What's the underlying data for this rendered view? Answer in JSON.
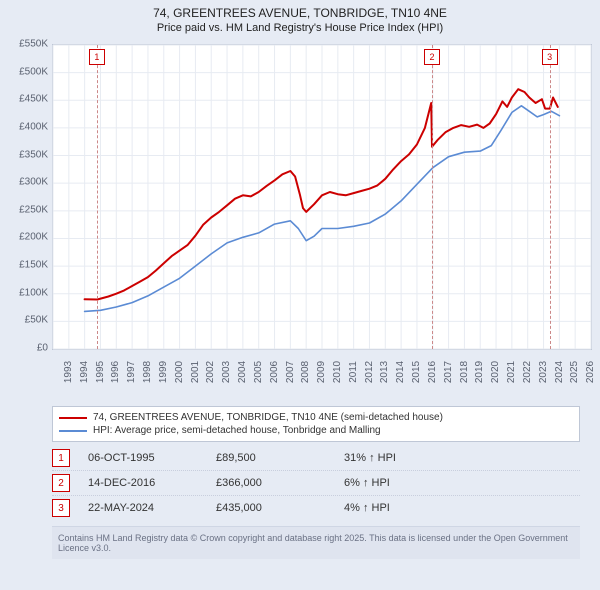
{
  "title": "74, GREENTREES AVENUE, TONBRIDGE, TN10 4NE",
  "subtitle": "Price paid vs. HM Land Registry's House Price Index (HPI)",
  "chart": {
    "type": "line",
    "background_color": "#ffffff",
    "grid_color": "#e7ebf2",
    "axis_color": "#bfc7d6",
    "fontsize_axis": 10,
    "x": {
      "min": 1993,
      "max": 2027,
      "step": 1
    },
    "y": {
      "min": 0,
      "max": 550,
      "step": 50,
      "unit_prefix": "£",
      "unit_suffix": "K"
    },
    "series": [
      {
        "name": "74, GREENTREES AVENUE, TONBRIDGE, TN10 4NE (semi-detached house)",
        "color": "#cc0000",
        "width": 2,
        "points": [
          [
            1995.0,
            90
          ],
          [
            1995.8,
            89.5
          ],
          [
            1996.5,
            95
          ],
          [
            1997.0,
            100
          ],
          [
            1997.5,
            106
          ],
          [
            1998.0,
            114
          ],
          [
            1998.5,
            122
          ],
          [
            1999.0,
            130
          ],
          [
            1999.5,
            142
          ],
          [
            2000.0,
            155
          ],
          [
            2000.5,
            168
          ],
          [
            2001.0,
            178
          ],
          [
            2001.5,
            188
          ],
          [
            2002.0,
            205
          ],
          [
            2002.5,
            225
          ],
          [
            2003.0,
            238
          ],
          [
            2003.5,
            248
          ],
          [
            2004.0,
            260
          ],
          [
            2004.5,
            272
          ],
          [
            2005.0,
            278
          ],
          [
            2005.5,
            276
          ],
          [
            2006.0,
            284
          ],
          [
            2006.5,
            295
          ],
          [
            2007.0,
            305
          ],
          [
            2007.5,
            316
          ],
          [
            2008.0,
            322
          ],
          [
            2008.3,
            312
          ],
          [
            2008.6,
            280
          ],
          [
            2008.8,
            255
          ],
          [
            2009.0,
            248
          ],
          [
            2009.5,
            262
          ],
          [
            2010.0,
            278
          ],
          [
            2010.5,
            284
          ],
          [
            2011.0,
            280
          ],
          [
            2011.5,
            278
          ],
          [
            2012.0,
            282
          ],
          [
            2012.5,
            286
          ],
          [
            2013.0,
            290
          ],
          [
            2013.5,
            296
          ],
          [
            2014.0,
            308
          ],
          [
            2014.5,
            325
          ],
          [
            2015.0,
            340
          ],
          [
            2015.5,
            352
          ],
          [
            2016.0,
            370
          ],
          [
            2016.5,
            400
          ],
          [
            2016.9,
            445
          ],
          [
            2016.95,
            366
          ],
          [
            2017.3,
            378
          ],
          [
            2017.8,
            392
          ],
          [
            2018.3,
            400
          ],
          [
            2018.8,
            405
          ],
          [
            2019.3,
            402
          ],
          [
            2019.8,
            406
          ],
          [
            2020.2,
            400
          ],
          [
            2020.6,
            408
          ],
          [
            2021.0,
            425
          ],
          [
            2021.4,
            448
          ],
          [
            2021.7,
            438
          ],
          [
            2022.0,
            455
          ],
          [
            2022.4,
            470
          ],
          [
            2022.8,
            465
          ],
          [
            2023.1,
            455
          ],
          [
            2023.5,
            445
          ],
          [
            2023.9,
            452
          ],
          [
            2024.1,
            435
          ],
          [
            2024.4,
            435
          ],
          [
            2024.6,
            455
          ],
          [
            2024.9,
            438
          ]
        ]
      },
      {
        "name": "HPI: Average price, semi-detached house, Tonbridge and Malling",
        "color": "#5b8bd4",
        "width": 1.6,
        "points": [
          [
            1995.0,
            68
          ],
          [
            1996.0,
            70
          ],
          [
            1997.0,
            76
          ],
          [
            1998.0,
            84
          ],
          [
            1999.0,
            96
          ],
          [
            2000.0,
            112
          ],
          [
            2001.0,
            128
          ],
          [
            2002.0,
            150
          ],
          [
            2003.0,
            172
          ],
          [
            2004.0,
            192
          ],
          [
            2005.0,
            202
          ],
          [
            2006.0,
            210
          ],
          [
            2007.0,
            226
          ],
          [
            2008.0,
            232
          ],
          [
            2008.5,
            218
          ],
          [
            2009.0,
            196
          ],
          [
            2009.5,
            204
          ],
          [
            2010.0,
            218
          ],
          [
            2011.0,
            218
          ],
          [
            2012.0,
            222
          ],
          [
            2013.0,
            228
          ],
          [
            2014.0,
            244
          ],
          [
            2015.0,
            268
          ],
          [
            2016.0,
            298
          ],
          [
            2017.0,
            328
          ],
          [
            2018.0,
            348
          ],
          [
            2019.0,
            356
          ],
          [
            2020.0,
            358
          ],
          [
            2020.7,
            368
          ],
          [
            2021.3,
            395
          ],
          [
            2022.0,
            428
          ],
          [
            2022.6,
            440
          ],
          [
            2023.0,
            432
          ],
          [
            2023.6,
            420
          ],
          [
            2024.0,
            424
          ],
          [
            2024.5,
            430
          ],
          [
            2025.0,
            422
          ]
        ]
      }
    ],
    "markers": [
      {
        "n": "1",
        "year": 1995.77
      },
      {
        "n": "2",
        "year": 2016.95
      },
      {
        "n": "3",
        "year": 2024.39
      }
    ]
  },
  "legend": {
    "title_fontsize": 10
  },
  "events": [
    {
      "n": "1",
      "date": "06-OCT-1995",
      "price": "£89,500",
      "delta": "31% ↑ HPI"
    },
    {
      "n": "2",
      "date": "14-DEC-2016",
      "price": "£366,000",
      "delta": "6% ↑ HPI"
    },
    {
      "n": "3",
      "date": "22-MAY-2024",
      "price": "£435,000",
      "delta": "4% ↑ HPI"
    }
  ],
  "footer": "Contains HM Land Registry data © Crown copyright and database right 2025. This data is licensed under the Open Government Licence v3.0."
}
